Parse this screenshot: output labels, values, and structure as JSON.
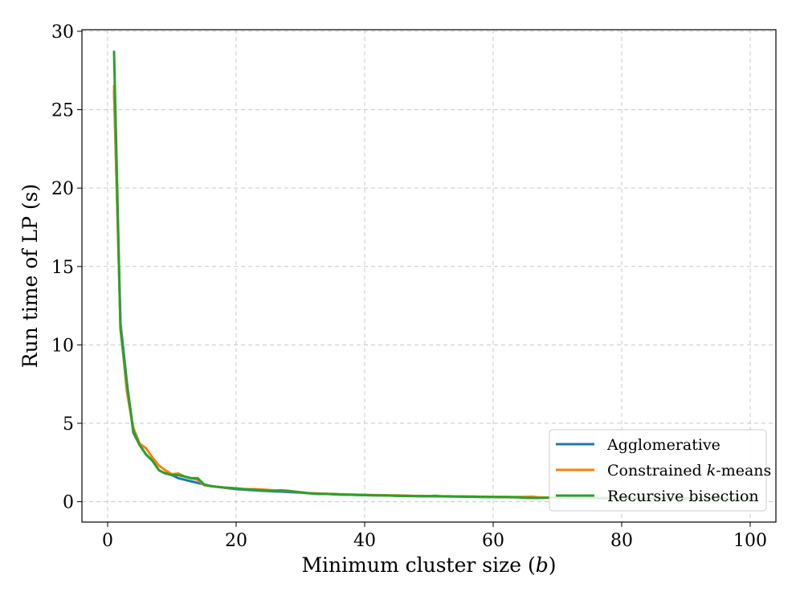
{
  "chart_data": {
    "type": "line",
    "title": "",
    "xlabel": "Minimum cluster size (b)",
    "ylabel": "Run time of LP (s)",
    "xlim": [
      -4,
      104
    ],
    "ylim": [
      -1.3,
      30.1
    ],
    "xticks": [
      0,
      20,
      40,
      60,
      80,
      100
    ],
    "yticks": [
      0,
      5,
      10,
      15,
      20,
      25,
      30
    ],
    "grid": true,
    "legend_position": "lower-right",
    "x": [
      1,
      2,
      3,
      4,
      5,
      6,
      7,
      8,
      9,
      10,
      11,
      12,
      13,
      14,
      15,
      16,
      17,
      18,
      19,
      20,
      21,
      22,
      23,
      24,
      25,
      26,
      27,
      28,
      29,
      30,
      31,
      32,
      33,
      34,
      35,
      36,
      37,
      38,
      39,
      40,
      41,
      42,
      43,
      44,
      45,
      46,
      47,
      48,
      49,
      50,
      51,
      52,
      53,
      54,
      55,
      56,
      57,
      58,
      59,
      60,
      61,
      62,
      63,
      64,
      65,
      66,
      67,
      68,
      69,
      70,
      71,
      72,
      73,
      74,
      75,
      76,
      77,
      78,
      79,
      80,
      81,
      82,
      83,
      84,
      85,
      86,
      87,
      88,
      89,
      90,
      91,
      92,
      93,
      94,
      95,
      96,
      97,
      98,
      99,
      100
    ],
    "series": [
      {
        "name": "Agglomerative",
        "color": "#1f77b4",
        "values": [
          26.2,
          11.4,
          7.6,
          4.4,
          3.6,
          3.0,
          2.6,
          2.0,
          1.8,
          1.7,
          1.5,
          1.4,
          1.3,
          1.2,
          1.1,
          1.0,
          0.95,
          0.9,
          0.85,
          0.8,
          0.78,
          0.75,
          0.72,
          0.7,
          0.68,
          0.66,
          0.64,
          0.62,
          0.6,
          0.58,
          0.55,
          0.52,
          0.5,
          0.5,
          0.48,
          0.46,
          0.45,
          0.44,
          0.43,
          0.42,
          0.41,
          0.4,
          0.4,
          0.39,
          0.38,
          0.37,
          0.36,
          0.36,
          0.35,
          0.35,
          0.34,
          0.34,
          0.33,
          0.33,
          0.32,
          0.32,
          0.31,
          0.31,
          0.3,
          0.3,
          0.29,
          0.29,
          0.28,
          0.28,
          0.27,
          0.27,
          0.26,
          0.26,
          0.26,
          0.25,
          0.25,
          0.25,
          0.24,
          0.24,
          0.24,
          0.23,
          0.23,
          0.23,
          0.22,
          0.22,
          0.22,
          0.22,
          0.21,
          0.21,
          0.21,
          0.21,
          0.2,
          0.2,
          0.2,
          0.2,
          0.2,
          0.19,
          0.19,
          0.19,
          0.19,
          0.19,
          0.18,
          0.18,
          0.18,
          0.18
        ]
      },
      {
        "name": "Constrained k-means",
        "name_prefix": "Constrained ",
        "name_italic": "k",
        "name_suffix": "-means",
        "color": "#ff7f0e",
        "values": [
          26.5,
          11.2,
          7.0,
          4.7,
          3.7,
          3.4,
          2.8,
          2.3,
          2.0,
          1.75,
          1.8,
          1.6,
          1.5,
          1.4,
          1.05,
          1.0,
          0.95,
          0.9,
          0.88,
          0.85,
          0.82,
          0.8,
          0.8,
          0.78,
          0.75,
          0.72,
          0.7,
          0.68,
          0.65,
          0.6,
          0.56,
          0.54,
          0.52,
          0.5,
          0.5,
          0.48,
          0.47,
          0.46,
          0.45,
          0.44,
          0.43,
          0.42,
          0.41,
          0.4,
          0.4,
          0.39,
          0.38,
          0.37,
          0.37,
          0.36,
          0.36,
          0.35,
          0.35,
          0.34,
          0.34,
          0.33,
          0.33,
          0.32,
          0.32,
          0.31,
          0.31,
          0.3,
          0.3,
          0.3,
          0.31,
          0.32,
          0.28,
          0.27,
          0.27,
          0.26,
          0.26,
          0.26,
          0.25,
          0.25,
          0.25,
          0.24,
          0.24,
          0.24,
          0.23,
          0.23,
          0.23,
          0.22,
          0.22,
          0.22,
          0.22,
          0.21,
          0.21,
          0.21,
          0.21,
          0.2,
          0.2,
          0.2,
          0.2,
          0.2,
          0.19,
          0.19,
          0.19,
          0.19,
          0.19,
          0.19
        ]
      },
      {
        "name": "Recursive bisection",
        "color": "#2ca02c",
        "values": [
          28.7,
          11.0,
          7.5,
          4.5,
          3.6,
          3.0,
          2.6,
          2.0,
          1.8,
          1.7,
          1.7,
          1.6,
          1.5,
          1.5,
          1.1,
          1.0,
          0.95,
          0.9,
          0.88,
          0.85,
          0.8,
          0.78,
          0.75,
          0.72,
          0.7,
          0.7,
          0.72,
          0.7,
          0.65,
          0.6,
          0.55,
          0.52,
          0.5,
          0.5,
          0.48,
          0.46,
          0.45,
          0.44,
          0.43,
          0.42,
          0.41,
          0.4,
          0.4,
          0.39,
          0.38,
          0.37,
          0.37,
          0.36,
          0.35,
          0.35,
          0.38,
          0.34,
          0.34,
          0.33,
          0.33,
          0.32,
          0.32,
          0.31,
          0.31,
          0.3,
          0.3,
          0.3,
          0.29,
          0.28,
          0.25,
          0.24,
          0.24,
          0.25,
          0.25,
          0.25,
          0.25,
          0.24,
          0.24,
          0.24,
          0.23,
          0.23,
          0.23,
          0.22,
          0.22,
          0.22,
          0.22,
          0.21,
          0.21,
          0.21,
          0.21,
          0.2,
          0.2,
          0.2,
          0.2,
          0.2,
          0.2,
          0.19,
          0.19,
          0.19,
          0.19,
          0.19,
          0.19,
          0.18,
          0.18,
          0.18
        ]
      }
    ]
  }
}
